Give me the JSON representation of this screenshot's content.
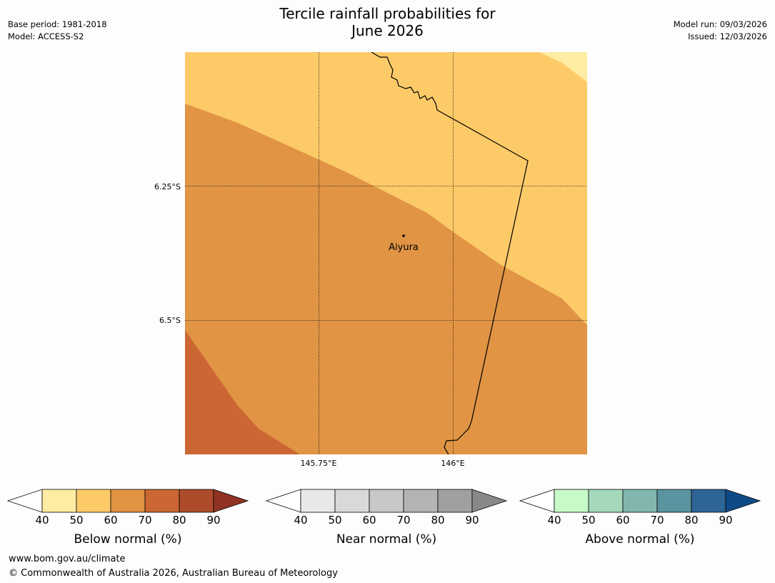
{
  "title_line1": "Tercile rainfall probabilities for",
  "title_line2": "June 2026",
  "meta_left": {
    "base_period": "Base period: 1981-2018",
    "model": "Model: ACCESS-S2"
  },
  "meta_right": {
    "model_run": "Model run: 09/03/2026",
    "issued": "Issued: 12/03/2026"
  },
  "map": {
    "place": "Aiyura",
    "lat_labels": [
      "6.25°S",
      "6.5°S"
    ],
    "lon_labels": [
      "145.75°E",
      "146°E"
    ],
    "zones": [
      {
        "name": "below-normal-40-50",
        "color": "#fdeca1"
      },
      {
        "name": "below-normal-50-60",
        "color": "#fdca68"
      },
      {
        "name": "below-normal-60-70",
        "color": "#e09444"
      },
      {
        "name": "below-normal-70-80",
        "color": "#cc6733"
      }
    ]
  },
  "colorbars": [
    {
      "title": "Below normal (%)",
      "ticks": [
        "40",
        "50",
        "60",
        "70",
        "80",
        "90"
      ],
      "colors": [
        "#ffffff",
        "#fdeca1",
        "#fdca68",
        "#e09444",
        "#cc6733",
        "#ae4b2a",
        "#8f3222"
      ]
    },
    {
      "title": "Near normal (%)",
      "ticks": [
        "40",
        "50",
        "60",
        "70",
        "80",
        "90"
      ],
      "colors": [
        "#ffffff",
        "#e8e8e8",
        "#d9d9d9",
        "#c8c8c8",
        "#b4b4b4",
        "#a0a0a0",
        "#888888"
      ]
    },
    {
      "title": "Above normal (%)",
      "ticks": [
        "40",
        "50",
        "60",
        "70",
        "80",
        "90"
      ],
      "colors": [
        "#ffffff",
        "#c8fac8",
        "#a4d9bc",
        "#82b7b0",
        "#5a94a0",
        "#2e6496",
        "#0e4a86"
      ]
    }
  ],
  "footer": {
    "url": "www.bom.gov.au/climate",
    "copyright": "© Commonwealth of Australia 2026, Australian Bureau of Meteorology"
  }
}
